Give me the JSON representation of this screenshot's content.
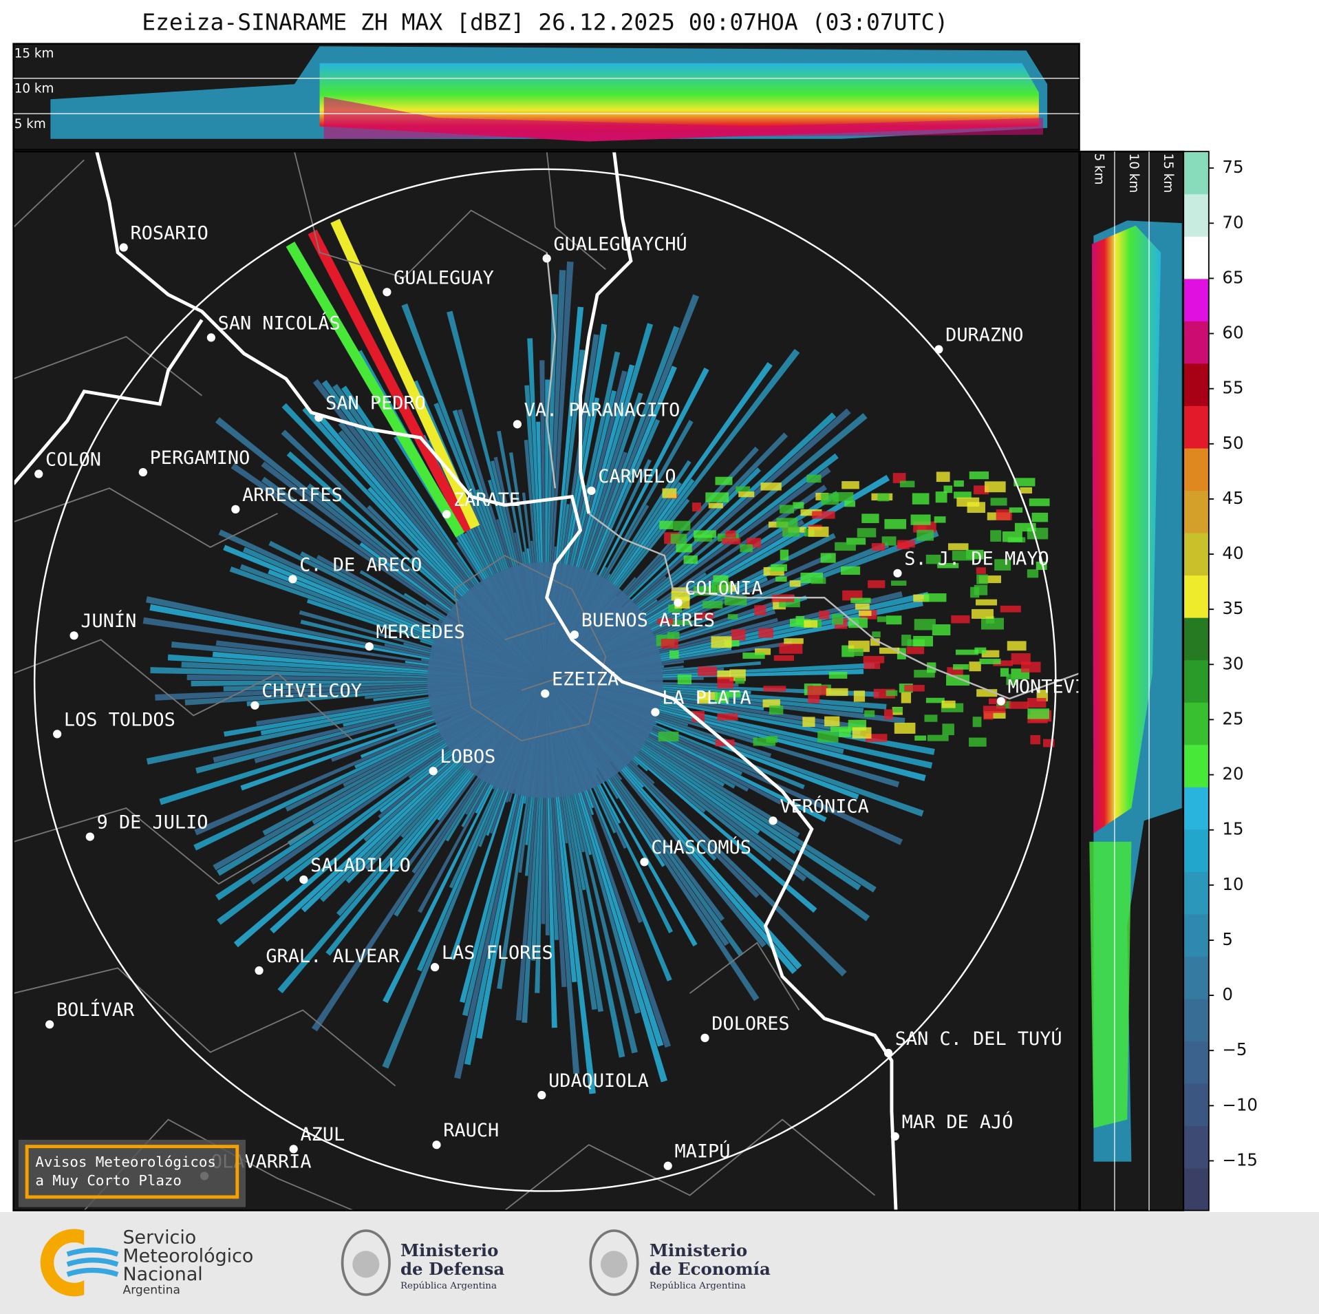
{
  "title": "Ezeiza-SINARAME ZH MAX [dBZ] 26.12.2025 00:07HOA (03:07UTC)",
  "top_panel": {
    "labels": [
      "15 km",
      "10 km",
      "5 km"
    ]
  },
  "side_panel": {
    "labels": [
      "5 km",
      "10 km",
      "15 km"
    ]
  },
  "colorbar": {
    "lim": [
      -19.5,
      76.5
    ],
    "ticks": [
      75,
      70,
      65,
      60,
      55,
      50,
      45,
      40,
      35,
      30,
      25,
      20,
      15,
      10,
      5,
      0,
      {
        "value": -5,
        "label": "−5"
      },
      {
        "value": -10,
        "label": "−10"
      },
      {
        "value": -15,
        "label": "−15"
      }
    ],
    "colors": [
      "#3a3f66",
      "#3c4a74",
      "#3b5680",
      "#3a628c",
      "#386e96",
      "#357aa0",
      "#2f88ad",
      "#2a97bb",
      "#23a6cc",
      "#28b4dd",
      "#47e838",
      "#38c030",
      "#2a9a28",
      "#257a22",
      "#eeea2c",
      "#c9c12a",
      "#d4a02a",
      "#e08820",
      "#e31a2a",
      "#a80014",
      "#cc0c70",
      "#e010e0",
      "#ffffff",
      "#c8ece0",
      "#88dcbc"
    ]
  },
  "cities": [
    "ROSARIO",
    "GUALEGUAYCHÚ",
    "GUALEGUAY",
    "SAN NICOLÁS",
    "DURAZNO",
    "SAN PEDRO",
    "VA. PARANACITO",
    "COLON",
    "PERGAMINO",
    "CARMELO",
    "ARRECIFES",
    "ZÁRATE",
    "C. DE ARECO",
    "S. J. DE MAYO",
    "COLONIA",
    "JUNÍN",
    "BUENOS AIRES",
    "MERCEDES",
    "EZEIZA",
    "CHIVILCOY",
    "MONTEVIDEO",
    "LA PLATA",
    "LOS TOLDOS",
    "LOBOS",
    "VERÓNICA",
    "9 DE JULIO",
    "CHASCOMÚS",
    "SALADILLO",
    "GRAL. ALVEAR",
    "LAS FLORES",
    "BOLÍVAR",
    "DOLORES",
    "SAN C. DEL TUYÚ",
    "UDAQUIOLA",
    "MAR DE AJÓ",
    "RAUCH",
    "AZUL",
    "MAIPÚ",
    "OLAVARRÍA"
  ],
  "notice": {
    "lines": [
      "Avisos Meteorológicos",
      "a Muy Corto Plazo"
    ]
  },
  "logos": {
    "smn": [
      "Servicio",
      "Meteorológico",
      "Nacional",
      "Argentina"
    ],
    "defensa": [
      "Ministerio",
      "de Defensa",
      "República Argentina"
    ],
    "economia": [
      "Ministerio",
      "de Economía",
      "República Argentina"
    ]
  }
}
